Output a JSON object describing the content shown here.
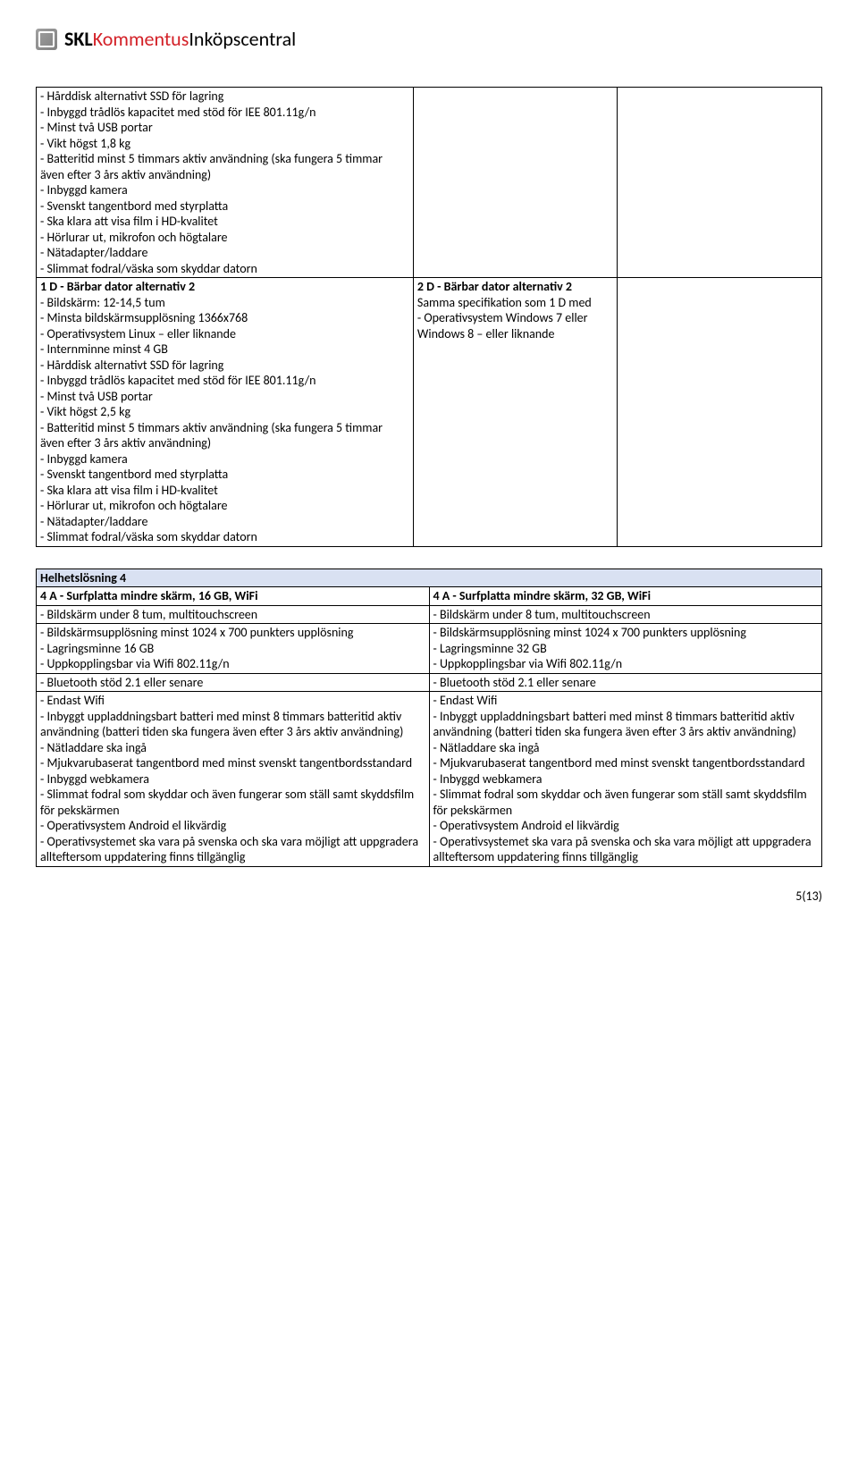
{
  "logo": {
    "skl": "SKL",
    "kommentus": "Kommentus",
    "inkops": "Inköpscentral"
  },
  "table1": {
    "row1_col1": "- Hårddisk alternativt SSD för lagring\n- Inbyggd trådlös kapacitet med stöd för IEE 801.11g/n\n- Minst två USB portar\n- Vikt högst 1,8 kg\n- Batteritid minst 5 timmars aktiv användning (ska fungera 5 timmar även efter 3 års aktiv användning)\n- Inbyggd kamera\n- Svenskt tangentbord med styrplatta\n- Ska klara att visa film i HD-kvalitet\n- Hörlurar ut, mikrofon och högtalare\n- Nätadapter/laddare\n- Slimmat fodral/väska som skyddar datorn",
    "row1_col2": "",
    "row1_col3": "",
    "row2_col1_title": "1 D - Bärbar dator alternativ 2",
    "row2_col1_body": "\n- Bildskärm: 12-14,5 tum\n- Minsta bildskärmsupplösning 1366x768\n- Operativsystem Linux – eller liknande\n- Internminne minst 4 GB\n- Hårddisk alternativt SSD för lagring\n- Inbyggd trådlös kapacitet med stöd för IEE 801.11g/n\n- Minst två USB portar\n- Vikt högst 2,5 kg\n- Batteritid minst 5 timmars aktiv användning (ska fungera 5 timmar även efter 3 års aktiv användning)\n- Inbyggd kamera\n- Svenskt tangentbord med styrplatta\n- Ska klara att visa film i HD-kvalitet\n- Hörlurar ut, mikrofon och högtalare\n- Nätadapter/laddare\n- Slimmat fodral/väska som skyddar datorn",
    "row2_col2_title": "2 D - Bärbar dator alternativ 2",
    "row2_col2_body": "\nSamma specifikation som 1 D med\n- Operativsystem Windows 7 eller Windows 8 – eller liknande",
    "row2_col3": ""
  },
  "table2": {
    "header": "Helhetslösning 4",
    "left_title": "4 A - Surfplatta mindre skärm, 16 GB, WiFi",
    "right_title": "4 A - Surfplatta mindre skärm, 32 GB, WiFi",
    "left_r1": "- Bildskärm under 8 tum, multitouchscreen",
    "right_r1": "- Bildskärm under 8 tum, multitouchscreen",
    "left_r2": "- Bildskärmsupplösning  minst 1024 x 700 punkters upplösning\n- Lagringsminne 16 GB\n- Uppkopplingsbar via Wifi 802.11g/n",
    "right_r2": "- Bildskärmsupplösning  minst 1024 x 700 punkters upplösning\n- Lagringsminne 32 GB\n- Uppkopplingsbar via Wifi 802.11g/n",
    "left_r3": "- Bluetooth stöd 2.1 eller senare",
    "right_r3": "- Bluetooth stöd 2.1 eller senare",
    "left_r4": "- Endast Wifi\n- Inbyggt uppladdningsbart batteri med minst 8 timmars batteritid aktiv användning (batteri tiden ska fungera även efter 3 års aktiv användning)\n- Nätladdare ska ingå\n- Mjukvarubaserat tangentbord med  minst svenskt tangentbordsstandard\n- Inbyggd webkamera\n- Slimmat fodral som skyddar och även fungerar som ställ samt skyddsfilm för pekskärmen\n- Operativsystem Android el likvärdig\n- Operativsystemet ska vara på svenska och ska vara möjligt att uppgradera allteftersom uppdatering finns tillgänglig",
    "right_r4": "- Endast Wifi\n- Inbyggt uppladdningsbart batteri med minst 8 timmars batteritid aktiv användning (batteri tiden ska fungera även efter 3 års aktiv användning)\n- Nätladdare ska ingå\n- Mjukvarubaserat tangentbord med  minst svenskt tangentbordsstandard\n- Inbyggd webkamera\n- Slimmat fodral som skyddar och även fungerar som ställ samt skyddsfilm för pekskärmen\n- Operativsystem Android el likvärdig\n- Operativsystemet ska vara på svenska och ska vara möjligt att uppgradera allteftersom uppdatering finns tillgänglig"
  },
  "pagenum": "5(13)"
}
